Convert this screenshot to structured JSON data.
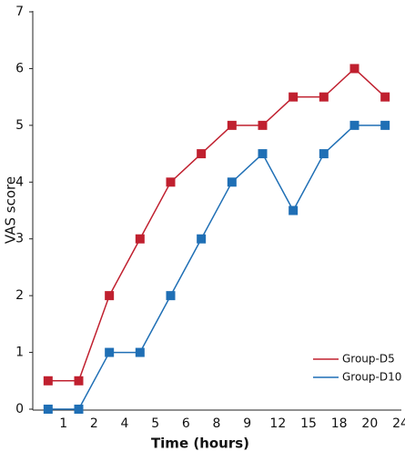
{
  "chart_data": {
    "type": "line",
    "x_label": "Time (hours)",
    "y_label": "VAS score",
    "categories": [
      "1",
      "2",
      "4",
      "5",
      "6",
      "8",
      "9",
      "12",
      "15",
      "18",
      "20",
      "24"
    ],
    "series": [
      {
        "name": "Group-D5",
        "color": "#c0202f",
        "values": [
          0.5,
          0.5,
          2,
          3,
          4,
          4.5,
          5,
          5,
          5.5,
          5.5,
          6,
          5.5
        ]
      },
      {
        "name": "Group-D10",
        "color": "#1f6fb5",
        "values": [
          0,
          0,
          1,
          1,
          2,
          3,
          4,
          4.5,
          3.5,
          4.5,
          5,
          5
        ]
      }
    ],
    "ylim": [
      0,
      7
    ],
    "yticks": [
      0,
      1,
      2,
      3,
      4,
      5,
      6,
      7
    ],
    "legend": "lower right"
  }
}
